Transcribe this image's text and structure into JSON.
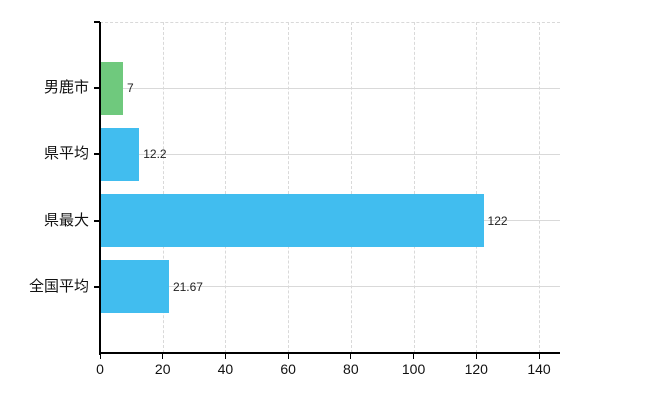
{
  "chart_data": {
    "type": "bar",
    "orientation": "horizontal",
    "title": "",
    "xlabel": "",
    "ylabel": "",
    "categories": [
      "男鹿市",
      "県平均",
      "県最大",
      "全国平均"
    ],
    "values": [
      7,
      12.2,
      122,
      21.67
    ],
    "value_labels": [
      "7",
      "12.2",
      "122",
      "21.67"
    ],
    "bar_colors": [
      "#6fc97d",
      "#41bdef",
      "#41bdef",
      "#41bdef"
    ],
    "x_ticks": [
      0,
      20,
      40,
      60,
      80,
      100,
      120,
      140
    ],
    "x_tick_labels": [
      "0",
      "20",
      "40",
      "60",
      "80",
      "100",
      "120",
      "140"
    ],
    "xlim": [
      0,
      146.7
    ],
    "grid": true,
    "legend": false,
    "colors": {
      "axis": "#000000",
      "gridline": "#d9d9d9",
      "tick_text": "#111111",
      "value_text": "#222222",
      "background": "#ffffff"
    }
  }
}
